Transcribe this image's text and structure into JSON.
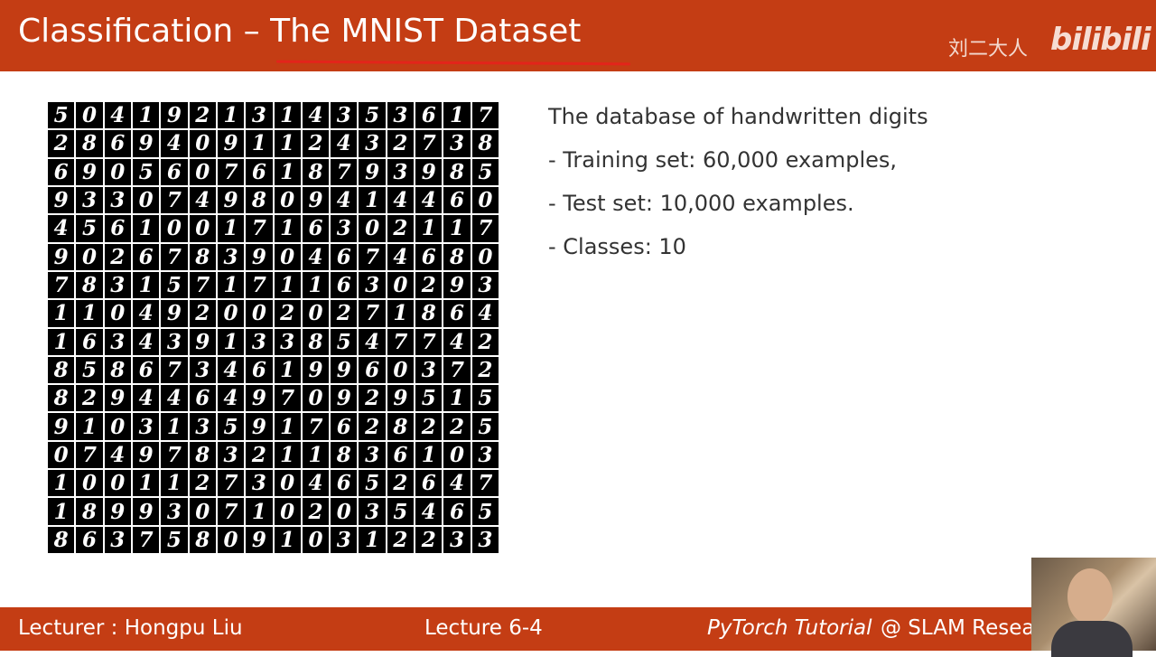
{
  "header": {
    "title": "Classification – The MNIST Dataset",
    "watermark": "刘二大人",
    "logo": "bilibili"
  },
  "grid": {
    "rows": [
      [
        "5",
        "0",
        "4",
        "1",
        "9",
        "2",
        "1",
        "3",
        "1",
        "4",
        "3",
        "5",
        "3",
        "6",
        "1",
        "7"
      ],
      [
        "2",
        "8",
        "6",
        "9",
        "4",
        "0",
        "9",
        "1",
        "1",
        "2",
        "4",
        "3",
        "2",
        "7",
        "3",
        "8"
      ],
      [
        "6",
        "9",
        "0",
        "5",
        "6",
        "0",
        "7",
        "6",
        "1",
        "8",
        "7",
        "9",
        "3",
        "9",
        "8",
        "5"
      ],
      [
        "9",
        "3",
        "3",
        "0",
        "7",
        "4",
        "9",
        "8",
        "0",
        "9",
        "4",
        "1",
        "4",
        "4",
        "6",
        "0"
      ],
      [
        "4",
        "5",
        "6",
        "1",
        "0",
        "0",
        "1",
        "7",
        "1",
        "6",
        "3",
        "0",
        "2",
        "1",
        "1",
        "7"
      ],
      [
        "9",
        "0",
        "2",
        "6",
        "7",
        "8",
        "3",
        "9",
        "0",
        "4",
        "6",
        "7",
        "4",
        "6",
        "8",
        "0"
      ],
      [
        "7",
        "8",
        "3",
        "1",
        "5",
        "7",
        "1",
        "7",
        "1",
        "1",
        "6",
        "3",
        "0",
        "2",
        "9",
        "3"
      ],
      [
        "1",
        "1",
        "0",
        "4",
        "9",
        "2",
        "0",
        "0",
        "2",
        "0",
        "2",
        "7",
        "1",
        "8",
        "6",
        "4"
      ],
      [
        "1",
        "6",
        "3",
        "4",
        "3",
        "9",
        "1",
        "3",
        "3",
        "8",
        "5",
        "4",
        "7",
        "7",
        "4",
        "2"
      ],
      [
        "8",
        "5",
        "8",
        "6",
        "7",
        "3",
        "4",
        "6",
        "1",
        "9",
        "9",
        "6",
        "0",
        "3",
        "7",
        "2"
      ],
      [
        "8",
        "2",
        "9",
        "4",
        "4",
        "6",
        "4",
        "9",
        "7",
        "0",
        "9",
        "2",
        "9",
        "5",
        "1",
        "5"
      ],
      [
        "9",
        "1",
        "0",
        "3",
        "1",
        "3",
        "5",
        "9",
        "1",
        "7",
        "6",
        "2",
        "8",
        "2",
        "2",
        "5"
      ],
      [
        "0",
        "7",
        "4",
        "9",
        "7",
        "8",
        "3",
        "2",
        "1",
        "1",
        "8",
        "3",
        "6",
        "1",
        "0",
        "3"
      ],
      [
        "1",
        "0",
        "0",
        "1",
        "1",
        "2",
        "7",
        "3",
        "0",
        "4",
        "6",
        "5",
        "2",
        "6",
        "4",
        "7"
      ],
      [
        "1",
        "8",
        "9",
        "9",
        "3",
        "0",
        "7",
        "1",
        "0",
        "2",
        "0",
        "3",
        "5",
        "4",
        "6",
        "5"
      ],
      [
        "8",
        "6",
        "3",
        "7",
        "5",
        "8",
        "0",
        "9",
        "1",
        "0",
        "3",
        "1",
        "2",
        "2",
        "3",
        "3"
      ]
    ]
  },
  "content": {
    "heading": "The database of handwritten digits",
    "bullets": [
      "- Training set: 60,000 examples,",
      "- Test set: 10,000 examples.",
      "- Classes: 10"
    ]
  },
  "footer": {
    "lecturer": "Lecturer : Hongpu Liu",
    "lecture": "Lecture 6-4",
    "course": "PyTorch Tutorial",
    "org": "@ SLAM Resea"
  }
}
